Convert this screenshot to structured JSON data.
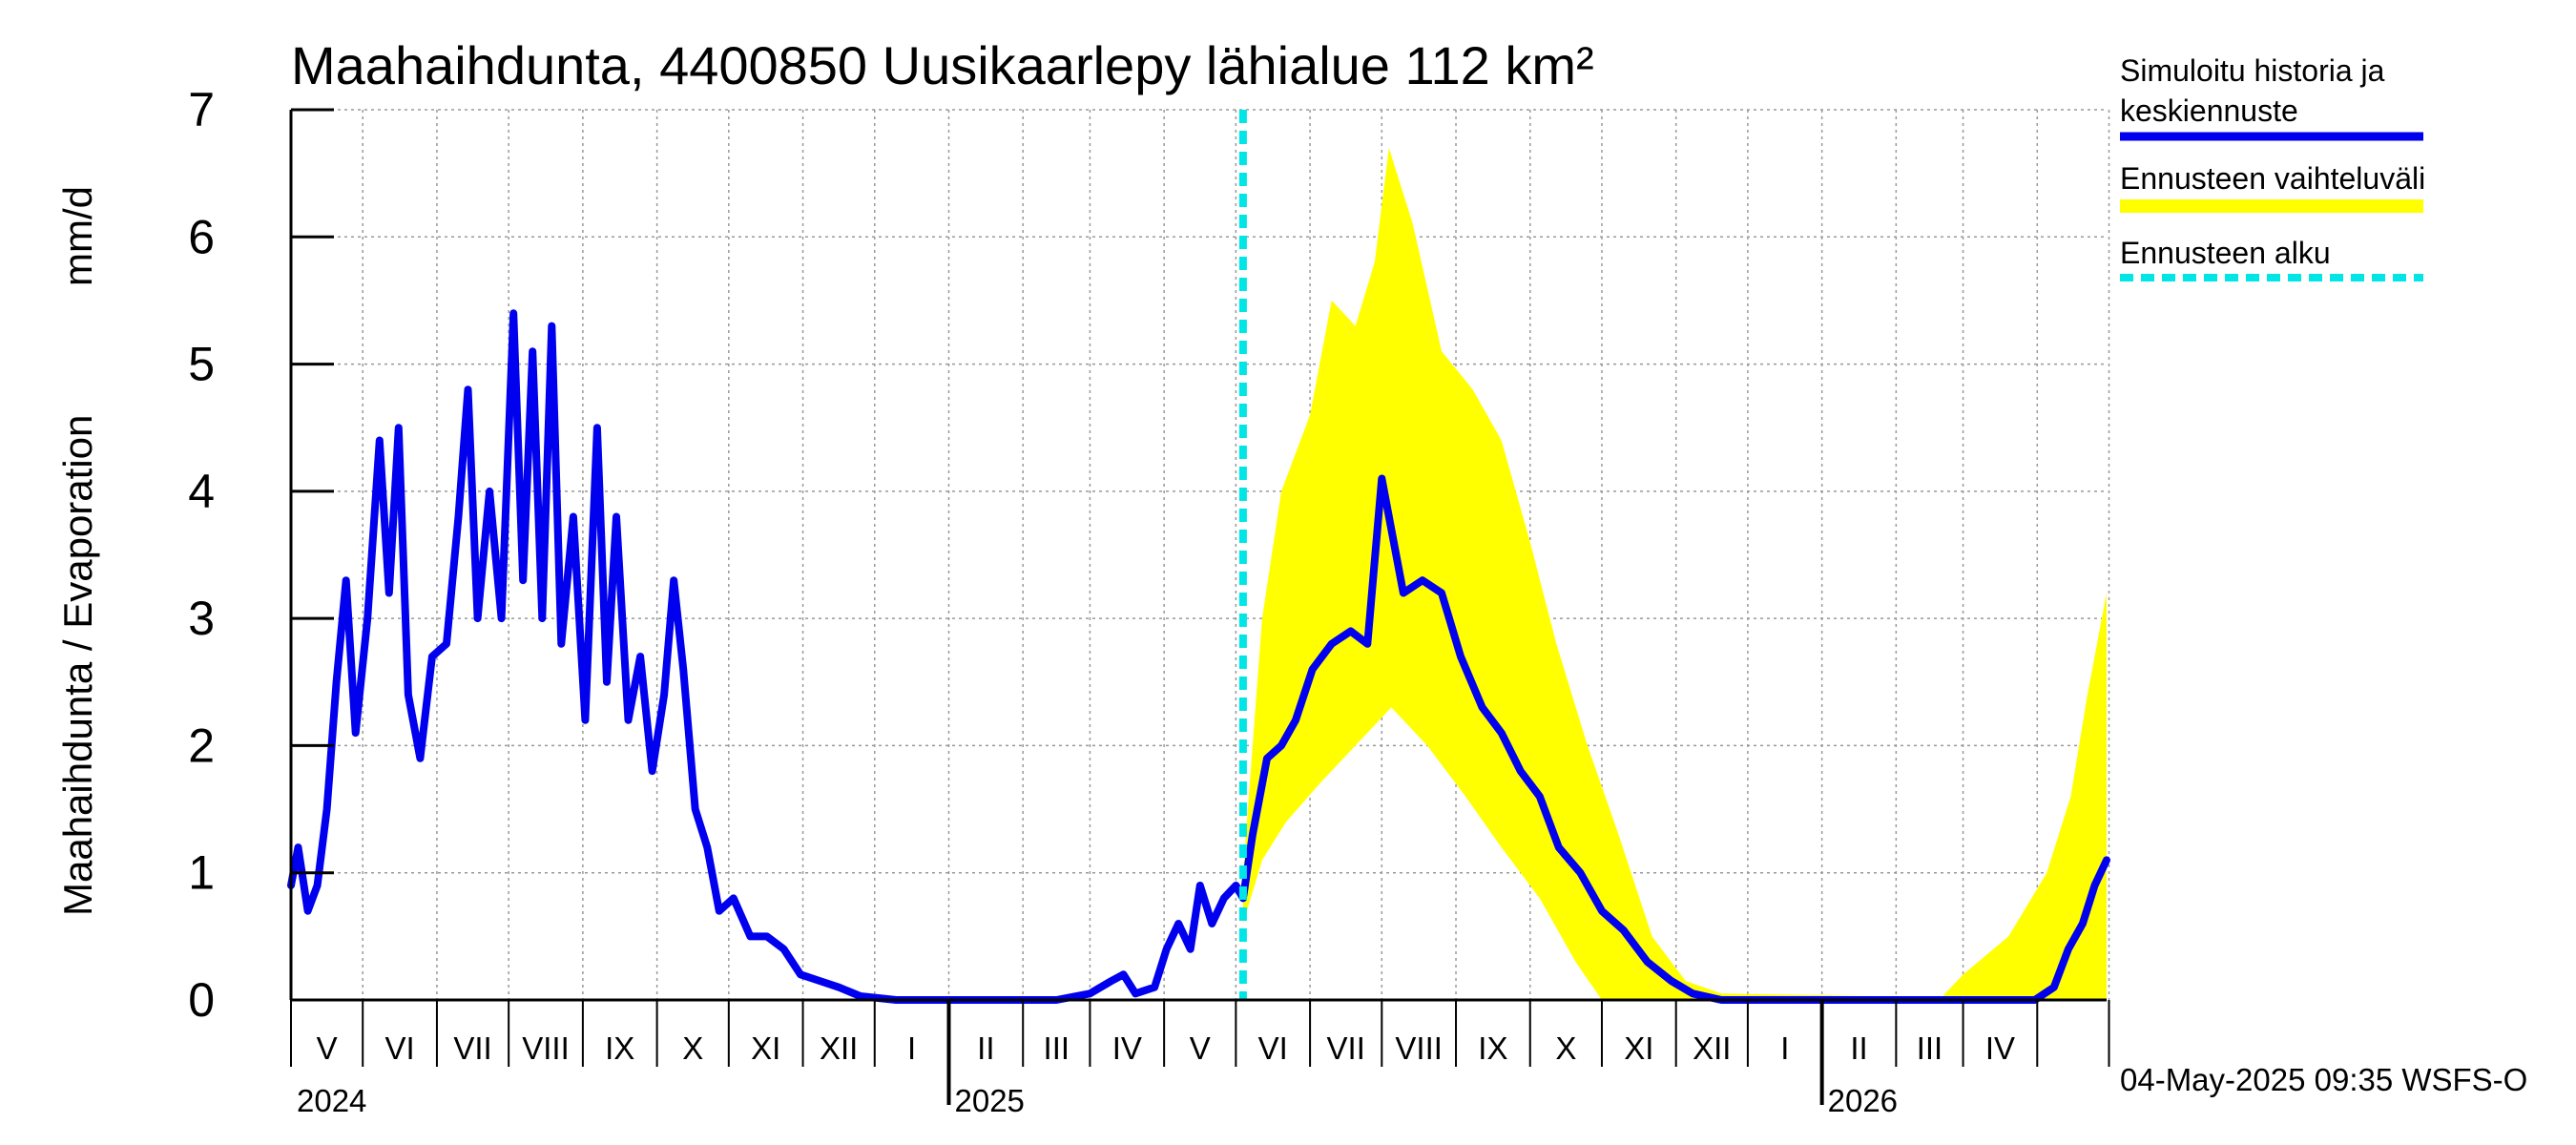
{
  "chart_data": {
    "type": "line",
    "title": "Maahaihdunta, 4400850 Uusikaarlepy lähialue 112 km²",
    "ylabel_left": "Maahaihdunta / Evaporation",
    "ylabel_unit": "mm/d",
    "ylim": [
      0,
      7
    ],
    "yticks": [
      "0",
      "1",
      "2",
      "3",
      "4",
      "5",
      "6",
      "7"
    ],
    "grid": true,
    "x_start": "2024-04-01",
    "x_end": "2026-04-30",
    "forecast_start": "2025-05-04",
    "months": [
      "V",
      "VI",
      "VII",
      "VIII",
      "IX",
      "X",
      "XI",
      "XII",
      "I",
      "II",
      "III",
      "IV",
      "V",
      "VI",
      "VII",
      "VIII",
      "IX",
      "X",
      "XI",
      "XII",
      "I",
      "II",
      "III",
      "IV"
    ],
    "years": [
      "2024",
      "2025",
      "2026"
    ],
    "legend_position": "right",
    "legend": [
      {
        "label_line1": "Simuloitu historia ja",
        "label_line2": "keskiennuste",
        "color": "#0000ee",
        "style": "solid"
      },
      {
        "label_line1": "Ennusteen vaihteluväli",
        "label_line2": "",
        "color": "#ffff00",
        "style": "solid"
      },
      {
        "label_line1": "Ennusteen alku",
        "label_line2": "",
        "color": "#00e5e5",
        "style": "dashed"
      }
    ],
    "series": [
      {
        "name": "Simuloitu historia ja keskiennuste",
        "color": "#0000ee",
        "points": [
          [
            "2024-04-01",
            0.9
          ],
          [
            "2024-04-04",
            1.2
          ],
          [
            "2024-04-08",
            0.7
          ],
          [
            "2024-04-12",
            0.9
          ],
          [
            "2024-04-16",
            1.5
          ],
          [
            "2024-04-20",
            2.5
          ],
          [
            "2024-04-24",
            3.3
          ],
          [
            "2024-04-28",
            2.1
          ],
          [
            "2024-05-03",
            3.0
          ],
          [
            "2024-05-08",
            4.4
          ],
          [
            "2024-05-12",
            3.2
          ],
          [
            "2024-05-16",
            4.5
          ],
          [
            "2024-05-20",
            2.4
          ],
          [
            "2024-05-25",
            1.9
          ],
          [
            "2024-05-30",
            2.7
          ],
          [
            "2024-06-05",
            2.8
          ],
          [
            "2024-06-10",
            3.8
          ],
          [
            "2024-06-14",
            4.8
          ],
          [
            "2024-06-18",
            3.0
          ],
          [
            "2024-06-23",
            4.0
          ],
          [
            "2024-06-28",
            3.0
          ],
          [
            "2024-07-03",
            5.4
          ],
          [
            "2024-07-07",
            3.3
          ],
          [
            "2024-07-11",
            5.1
          ],
          [
            "2024-07-15",
            3.0
          ],
          [
            "2024-07-19",
            5.3
          ],
          [
            "2024-07-23",
            2.8
          ],
          [
            "2024-07-28",
            3.8
          ],
          [
            "2024-08-02",
            2.2
          ],
          [
            "2024-08-07",
            4.5
          ],
          [
            "2024-08-11",
            2.5
          ],
          [
            "2024-08-15",
            3.8
          ],
          [
            "2024-08-20",
            2.2
          ],
          [
            "2024-08-25",
            2.7
          ],
          [
            "2024-08-30",
            1.8
          ],
          [
            "2024-09-04",
            2.4
          ],
          [
            "2024-09-08",
            3.3
          ],
          [
            "2024-09-12",
            2.6
          ],
          [
            "2024-09-17",
            1.5
          ],
          [
            "2024-09-22",
            1.2
          ],
          [
            "2024-09-27",
            0.7
          ],
          [
            "2024-10-03",
            0.8
          ],
          [
            "2024-10-10",
            0.5
          ],
          [
            "2024-10-17",
            0.5
          ],
          [
            "2024-10-24",
            0.4
          ],
          [
            "2024-10-31",
            0.2
          ],
          [
            "2024-11-08",
            0.15
          ],
          [
            "2024-11-16",
            0.1
          ],
          [
            "2024-11-25",
            0.03
          ],
          [
            "2024-12-10",
            0.0
          ],
          [
            "2025-01-15",
            0.0
          ],
          [
            "2025-02-15",
            0.0
          ],
          [
            "2025-03-01",
            0.05
          ],
          [
            "2025-03-10",
            0.15
          ],
          [
            "2025-03-15",
            0.2
          ],
          [
            "2025-03-20",
            0.05
          ],
          [
            "2025-03-28",
            0.1
          ],
          [
            "2025-04-02",
            0.4
          ],
          [
            "2025-04-07",
            0.6
          ],
          [
            "2025-04-12",
            0.4
          ],
          [
            "2025-04-16",
            0.9
          ],
          [
            "2025-04-21",
            0.6
          ],
          [
            "2025-04-26",
            0.8
          ],
          [
            "2025-05-01",
            0.9
          ],
          [
            "2025-05-04",
            0.8
          ],
          [
            "2025-05-08",
            1.3
          ],
          [
            "2025-05-14",
            1.9
          ],
          [
            "2025-05-20",
            2.0
          ],
          [
            "2025-05-26",
            2.2
          ],
          [
            "2025-06-02",
            2.6
          ],
          [
            "2025-06-10",
            2.8
          ],
          [
            "2025-06-18",
            2.9
          ],
          [
            "2025-06-25",
            2.8
          ],
          [
            "2025-07-01",
            4.1
          ],
          [
            "2025-07-05",
            3.7
          ],
          [
            "2025-07-10",
            3.2
          ],
          [
            "2025-07-18",
            3.3
          ],
          [
            "2025-07-26",
            3.2
          ],
          [
            "2025-08-03",
            2.7
          ],
          [
            "2025-08-12",
            2.3
          ],
          [
            "2025-08-20",
            2.1
          ],
          [
            "2025-08-28",
            1.8
          ],
          [
            "2025-09-05",
            1.6
          ],
          [
            "2025-09-13",
            1.2
          ],
          [
            "2025-09-22",
            1.0
          ],
          [
            "2025-10-01",
            0.7
          ],
          [
            "2025-10-10",
            0.55
          ],
          [
            "2025-10-20",
            0.3
          ],
          [
            "2025-10-30",
            0.15
          ],
          [
            "2025-11-08",
            0.05
          ],
          [
            "2025-11-20",
            0.0
          ],
          [
            "2026-01-15",
            0.0
          ],
          [
            "2026-03-31",
            0.0
          ],
          [
            "2026-04-08",
            0.1
          ],
          [
            "2026-04-14",
            0.4
          ],
          [
            "2026-04-20",
            0.6
          ],
          [
            "2026-04-25",
            0.9
          ],
          [
            "2026-04-30",
            1.1
          ]
        ]
      }
    ],
    "band": {
      "name": "Ennusteen vaihteluväli",
      "color": "#ffff00",
      "upper": [
        [
          "2025-05-04",
          1.0
        ],
        [
          "2025-05-12",
          3.0
        ],
        [
          "2025-05-20",
          4.0
        ],
        [
          "2025-06-01",
          4.6
        ],
        [
          "2025-06-10",
          5.5
        ],
        [
          "2025-06-20",
          5.3
        ],
        [
          "2025-06-28",
          5.8
        ],
        [
          "2025-07-04",
          6.7
        ],
        [
          "2025-07-14",
          6.1
        ],
        [
          "2025-07-26",
          5.1
        ],
        [
          "2025-08-08",
          4.8
        ],
        [
          "2025-08-20",
          4.4
        ],
        [
          "2025-09-01",
          3.6
        ],
        [
          "2025-09-12",
          2.8
        ],
        [
          "2025-09-25",
          2.0
        ],
        [
          "2025-10-08",
          1.3
        ],
        [
          "2025-10-22",
          0.5
        ],
        [
          "2025-11-05",
          0.15
        ],
        [
          "2025-11-20",
          0.05
        ],
        [
          "2026-02-20",
          0.02
        ],
        [
          "2026-03-01",
          0.2
        ],
        [
          "2026-03-20",
          0.5
        ],
        [
          "2026-04-05",
          1.0
        ],
        [
          "2026-04-15",
          1.6
        ],
        [
          "2026-04-22",
          2.4
        ],
        [
          "2026-04-30",
          3.2
        ]
      ],
      "lower": [
        [
          "2025-05-04",
          0.6
        ],
        [
          "2025-05-12",
          1.1
        ],
        [
          "2025-05-22",
          1.4
        ],
        [
          "2025-06-05",
          1.7
        ],
        [
          "2025-06-20",
          2.0
        ],
        [
          "2025-07-05",
          2.3
        ],
        [
          "2025-07-20",
          2.0
        ],
        [
          "2025-08-05",
          1.6
        ],
        [
          "2025-08-20",
          1.2
        ],
        [
          "2025-09-05",
          0.8
        ],
        [
          "2025-09-20",
          0.3
        ],
        [
          "2025-10-01",
          0.0
        ],
        [
          "2026-04-30",
          0.0
        ]
      ]
    }
  },
  "footer": "04-May-2025 09:35 WSFS-O"
}
